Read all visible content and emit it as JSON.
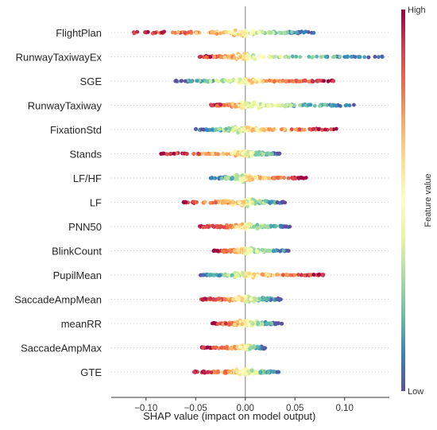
{
  "chart_data": {
    "type": "scatter",
    "subtype": "shap-beeswarm",
    "xlabel": "SHAP value (impact on model output)",
    "xlim": [
      -0.135,
      0.145
    ],
    "xticks": [
      -0.1,
      -0.05,
      0.0,
      0.05,
      0.1
    ],
    "xtick_labels": [
      "−0.10",
      "−0.05",
      "0.00",
      "0.05",
      "0.10"
    ],
    "colorbar": {
      "title": "Feature value",
      "high_label": "High",
      "low_label": "Low",
      "colormap": "Spectral"
    },
    "features": [
      {
        "name": "FlightPlan",
        "high_side": "negative",
        "neg_min": -0.12,
        "pos_max": 0.07,
        "width": 1.0
      },
      {
        "name": "RunwayTaxiwayEx",
        "high_side": "negative",
        "neg_min": -0.05,
        "pos_max": 0.14,
        "width": 0.8
      },
      {
        "name": "SGE",
        "high_side": "positive",
        "neg_min": -0.075,
        "pos_max": 0.09,
        "width": 0.8
      },
      {
        "name": "RunwayTaxiway",
        "high_side": "negative",
        "neg_min": -0.035,
        "pos_max": 0.11,
        "width": 0.9
      },
      {
        "name": "FixationStd",
        "high_side": "positive",
        "neg_min": -0.05,
        "pos_max": 0.092,
        "width": 0.9
      },
      {
        "name": "Stands",
        "high_side": "negative",
        "neg_min": -0.085,
        "pos_max": 0.035,
        "width": 0.8
      },
      {
        "name": "LF/HF",
        "high_side": "positive",
        "neg_min": -0.035,
        "pos_max": 0.062,
        "width": 0.8
      },
      {
        "name": "LF",
        "high_side": "negative",
        "neg_min": -0.068,
        "pos_max": 0.04,
        "width": 1.0
      },
      {
        "name": "PNN50",
        "high_side": "negative",
        "neg_min": -0.046,
        "pos_max": 0.045,
        "width": 0.8
      },
      {
        "name": "BlinkCount",
        "high_side": "negative",
        "neg_min": -0.032,
        "pos_max": 0.045,
        "width": 0.8
      },
      {
        "name": "PupilMean",
        "high_side": "positive",
        "neg_min": -0.046,
        "pos_max": 0.083,
        "width": 0.7
      },
      {
        "name": "SaccadeAmpMean",
        "high_side": "negative",
        "neg_min": -0.046,
        "pos_max": 0.037,
        "width": 0.8
      },
      {
        "name": "meanRR",
        "high_side": "negative",
        "neg_min": -0.034,
        "pos_max": 0.037,
        "width": 0.8
      },
      {
        "name": "SaccadeAmpMax",
        "high_side": "negative",
        "neg_min": -0.045,
        "pos_max": 0.02,
        "width": 0.6
      },
      {
        "name": "GTE",
        "high_side": "negative",
        "neg_min": -0.052,
        "pos_max": 0.035,
        "width": 0.8
      }
    ]
  }
}
